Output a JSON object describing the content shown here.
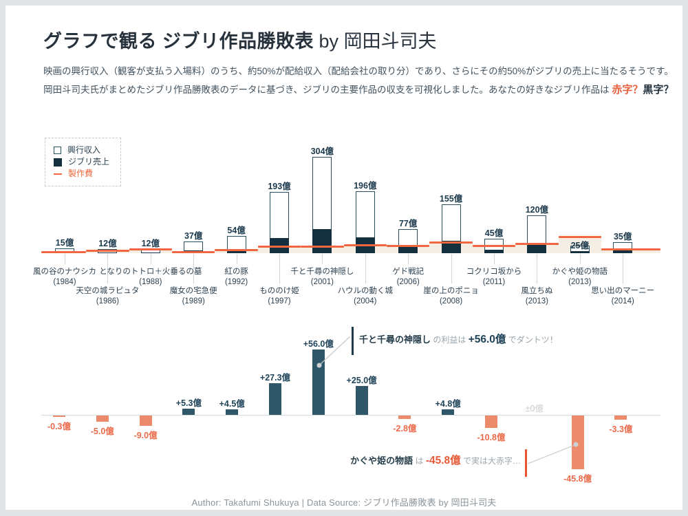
{
  "page": {
    "title_bold": "グラフで観る ジブリ作品勝敗表",
    "title_suffix": "by 岡田斗司夫",
    "description_line1": "映画の興行収入（観客が支払う入場料）のうち、約50%が配給収入（配給会社の取り分）であり、さらにその約50%がジブリの売上に当たるそうです。",
    "description_line2_prefix": "岡田斗司夫氏がまとめたジブリ作品勝敗表のデータに基づき、ジブリの主要作品の収支を可視化しました。あなたの好きなジブリ作品は ",
    "red_word": "赤字？",
    "black_word": "黒字？",
    "footer": "Author: Takafumi Shukuya | Data Source: ジブリ作品勝敗表 by 岡田斗司夫"
  },
  "legend": {
    "items": [
      {
        "label": "興行収入",
        "marker": "outline-box"
      },
      {
        "label": "ジブリ売上",
        "marker": "filled-box"
      },
      {
        "label": "製作費",
        "marker": "dash"
      }
    ]
  },
  "colors": {
    "accent_red": "#e9603b",
    "navy_fill": "#14303f",
    "bar_outline": "#2b4d60",
    "positive_bar": "#2f5769",
    "negative_bar": "#ec8a6c",
    "cost_line": "#f0663f",
    "cost_area": "#f5eee5",
    "title_text": "#28323c",
    "body_text": "#42525e",
    "muted_text": "#8b949b"
  },
  "chart_data": [
    {
      "type": "bar",
      "name": "box-office-stacked-chart",
      "unit": "億円",
      "legend": [
        "興行収入",
        "ジブリ売上",
        "製作費"
      ],
      "films": [
        {
          "title": "風の谷のナウシカ",
          "year": "(1984)",
          "box_office": 15,
          "box_office_label": "15億",
          "ghibli_sales": 3.75,
          "production_cost": 4.1,
          "profit": -0.3,
          "profit_label": "-0.3億",
          "label_row": "upper"
        },
        {
          "title": "天空の城ラピュタ",
          "year": "(1986)",
          "box_office": 12,
          "box_office_label": "12億",
          "ghibli_sales": 3.0,
          "production_cost": 8.0,
          "profit": -5.0,
          "profit_label": "-5.0億",
          "label_row": "lower"
        },
        {
          "title": "となりのトトロ＋火垂るの墓",
          "year": "(1988)",
          "box_office": 12,
          "box_office_label": "12億",
          "ghibli_sales": 3.0,
          "production_cost": 12.0,
          "profit": -9.0,
          "profit_label": "-9.0億",
          "label_row": "upper"
        },
        {
          "title": "魔女の宅急便",
          "year": "(1989)",
          "box_office": 37,
          "box_office_label": "37億",
          "ghibli_sales": 9.25,
          "production_cost": 4.0,
          "profit": 5.3,
          "profit_label": "+5.3億",
          "label_row": "lower"
        },
        {
          "title": "紅の豚",
          "year": "(1992)",
          "box_office": 54,
          "box_office_label": "54億",
          "ghibli_sales": 13.5,
          "production_cost": 9.0,
          "profit": 4.5,
          "profit_label": "+4.5億",
          "label_row": "upper"
        },
        {
          "title": "もののけ姫",
          "year": "(1997)",
          "box_office": 193,
          "box_office_label": "193億",
          "ghibli_sales": 48.25,
          "production_cost": 21.0,
          "profit": 27.3,
          "profit_label": "+27.3億",
          "label_row": "lower"
        },
        {
          "title": "千と千尋の神隠し",
          "year": "(2001)",
          "box_office": 304,
          "box_office_label": "304億",
          "ghibli_sales": 76.0,
          "production_cost": 20.0,
          "profit": 56.0,
          "profit_label": "+56.0億",
          "label_row": "upper"
        },
        {
          "title": "ハウルの動く城",
          "year": "(2004)",
          "box_office": 196,
          "box_office_label": "196億",
          "ghibli_sales": 49.0,
          "production_cost": 24.0,
          "profit": 25.0,
          "profit_label": "+25.0億",
          "label_row": "lower"
        },
        {
          "title": "ゲド戦記",
          "year": "(2006)",
          "box_office": 77,
          "box_office_label": "77億",
          "ghibli_sales": 19.25,
          "production_cost": 22.1,
          "profit": -2.8,
          "profit_label": "-2.8億",
          "label_row": "upper"
        },
        {
          "title": "崖の上のポニョ",
          "year": "(2008)",
          "box_office": 155,
          "box_office_label": "155億",
          "ghibli_sales": 38.75,
          "production_cost": 34.0,
          "profit": 4.8,
          "profit_label": "+4.8億",
          "label_row": "lower"
        },
        {
          "title": "コクリコ坂から",
          "year": "(2011)",
          "box_office": 45,
          "box_office_label": "45億",
          "ghibli_sales": 11.25,
          "production_cost": 22.1,
          "profit": -10.8,
          "profit_label": "-10.8億",
          "label_row": "upper"
        },
        {
          "title": "風立ちぬ",
          "year": "(2013)",
          "box_office": 120,
          "box_office_label": "120億",
          "ghibli_sales": 30.0,
          "production_cost": 30.0,
          "profit": 0.0,
          "profit_label": "±0億",
          "label_row": "lower"
        },
        {
          "title": "かぐや姫の物語",
          "year": "(2013)",
          "box_office": 25,
          "box_office_label": "25億",
          "ghibli_sales": 6.25,
          "production_cost": 52.1,
          "profit": -45.8,
          "profit_label": "-45.8億",
          "label_row": "upper"
        },
        {
          "title": "思い出のマーニー",
          "year": "(2014)",
          "box_office": 35,
          "box_office_label": "35億",
          "ghibli_sales": 8.75,
          "production_cost": 12.1,
          "profit": -3.3,
          "profit_label": "-3.3億",
          "label_row": "lower"
        }
      ]
    },
    {
      "type": "bar",
      "name": "profit-loss-chart",
      "unit": "億円",
      "zero_label": "±0億",
      "values_from": "films.profit",
      "annotations": [
        {
          "target": "千と千尋の神隠し",
          "segments": [
            {
              "text": "千と千尋の神隠し",
              "style": "name"
            },
            {
              "text": " の利益は ",
              "style": "gray"
            },
            {
              "text": "+56.0億",
              "style": "value-pos"
            },
            {
              "text": " でダントツ！",
              "style": "gray"
            }
          ]
        },
        {
          "target": "かぐや姫の物語",
          "segments": [
            {
              "text": "かぐや姫の物語",
              "style": "name"
            },
            {
              "text": " は ",
              "style": "gray"
            },
            {
              "text": "-45.8億",
              "style": "value-neg"
            },
            {
              "text": " で実は大赤字…",
              "style": "gray"
            }
          ]
        }
      ]
    }
  ]
}
